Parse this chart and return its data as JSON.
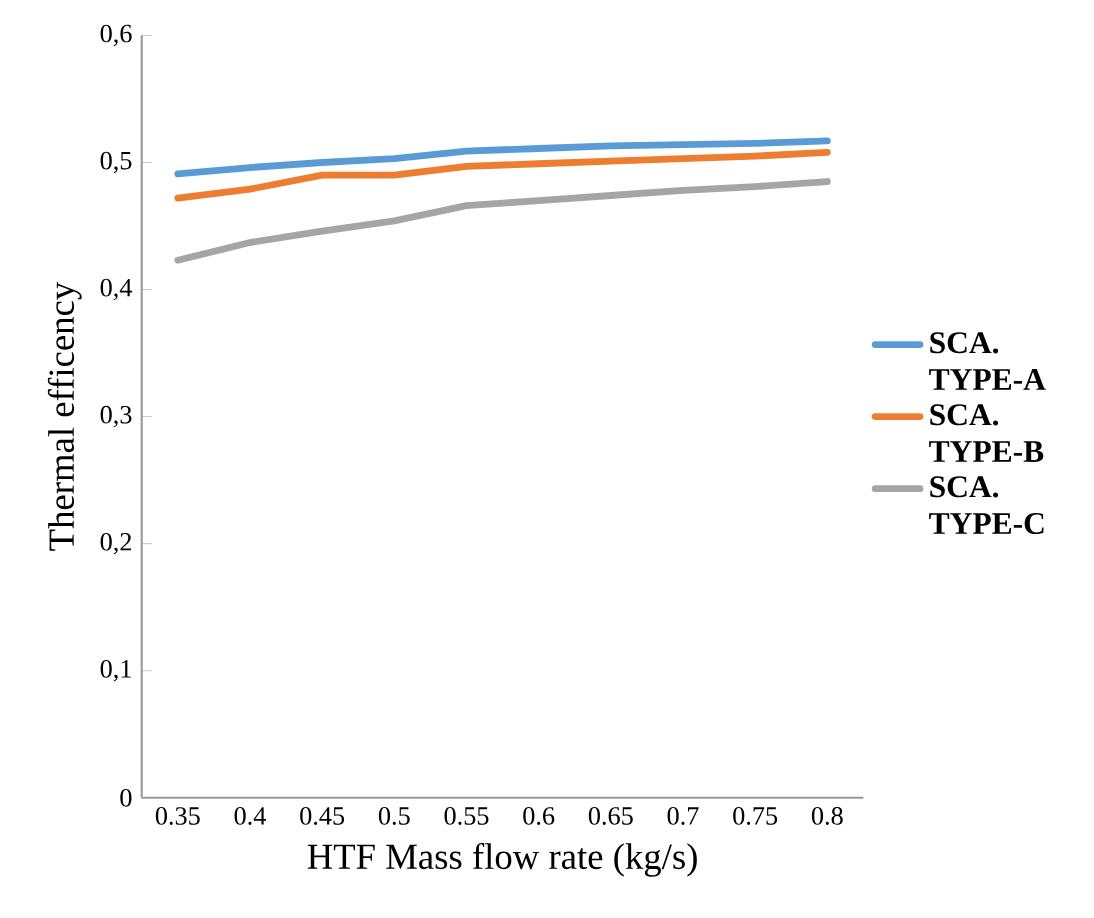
{
  "chart_data": {
    "type": "line",
    "xlabel": "HTF Mass flow rate (kg/s)",
    "ylabel": "Thermal efficency",
    "categories": [
      "0.35",
      "0.4",
      "0.45",
      "0.5",
      "0.55",
      "0.6",
      "0.65",
      "0.7",
      "0.75",
      "0.8"
    ],
    "series": [
      {
        "name": "SCA. TYPE-A",
        "color": "#5b9bd5",
        "values": [
          0.491,
          0.496,
          0.5,
          0.503,
          0.509,
          0.511,
          0.513,
          0.514,
          0.515,
          0.517
        ]
      },
      {
        "name": "SCA. TYPE-B",
        "color": "#ed7d31",
        "values": [
          0.472,
          0.479,
          0.49,
          0.49,
          0.497,
          0.499,
          0.501,
          0.503,
          0.505,
          0.508
        ]
      },
      {
        "name": "SCA. TYPE-C",
        "color": "#a5a5a5",
        "values": [
          0.423,
          0.437,
          0.446,
          0.454,
          0.466,
          0.47,
          0.474,
          0.478,
          0.481,
          0.485
        ]
      }
    ],
    "ylim": [
      0,
      0.6
    ],
    "yticks": [
      {
        "value": 0,
        "label": "0"
      },
      {
        "value": 0.1,
        "label": "0,1"
      },
      {
        "value": 0.2,
        "label": "0,2"
      },
      {
        "value": 0.3,
        "label": "0,3"
      },
      {
        "value": 0.4,
        "label": "0,4"
      },
      {
        "value": 0.5,
        "label": "0,5"
      },
      {
        "value": 0.6,
        "label": "0,6"
      }
    ],
    "grid": false,
    "legend": "right",
    "marker": "none",
    "line_style": "solid"
  }
}
